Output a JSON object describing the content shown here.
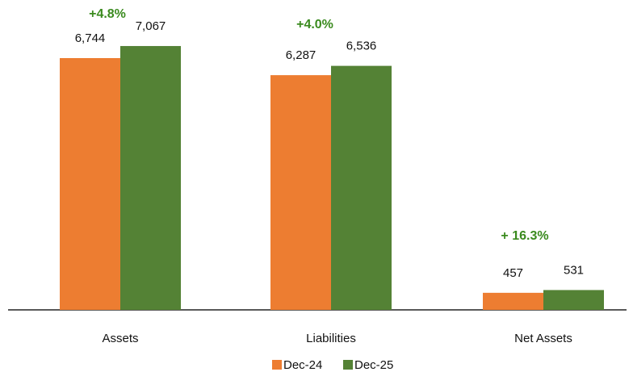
{
  "chart_data": {
    "type": "bar",
    "categories": [
      "Assets",
      "Liabilities",
      "Net Assets"
    ],
    "series": [
      {
        "name": "Dec-24",
        "color": "#ed7d31",
        "values": [
          6744,
          6287,
          457
        ],
        "value_labels": [
          "6,744",
          "6,287",
          "457"
        ]
      },
      {
        "name": "Dec-25",
        "color": "#548235",
        "values": [
          7067,
          6536,
          531
        ],
        "value_labels": [
          "7,067",
          "6,536",
          "531"
        ]
      }
    ],
    "annotations": [
      "+4.8%",
      "+4.0%",
      "+ 16.3%"
    ],
    "ylim": [
      0,
      8300
    ]
  }
}
